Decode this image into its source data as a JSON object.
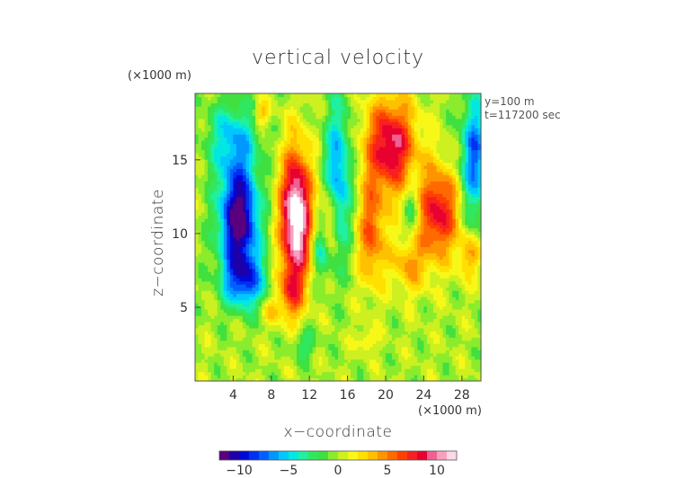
{
  "chart_data": {
    "type": "heatmap",
    "title": "vertical velocity",
    "xlabel": "x−coordinate",
    "ylabel": "z−coordinate",
    "x_scale_label": "(×1000 m)",
    "y_scale_label": "(×1000 m)",
    "info_lines": [
      "y=100 m",
      "t=117200 sec"
    ],
    "xlim": [
      0,
      30
    ],
    "ylim": [
      0,
      19.5
    ],
    "x_ticks": [
      4,
      8,
      12,
      16,
      20,
      24,
      28
    ],
    "x_tick_labels": [
      "4",
      "8",
      "12",
      "16",
      "20",
      "24",
      "28"
    ],
    "y_ticks": [
      5,
      10,
      15
    ],
    "y_tick_labels": [
      "5",
      "10",
      "15"
    ],
    "colorbar": {
      "range": [
        -12,
        12
      ],
      "ticks": [
        -10,
        -5,
        0,
        5,
        10
      ],
      "tick_labels": [
        "−10",
        "−5",
        "0",
        "5",
        "10"
      ],
      "levels": 24,
      "colors": [
        "#5a007f",
        "#1f00a8",
        "#0008d8",
        "#0030f0",
        "#0060ff",
        "#0098ff",
        "#00c8ff",
        "#00e8e0",
        "#20f0a0",
        "#30e860",
        "#40e040",
        "#8aec2c",
        "#ccf020",
        "#f8f818",
        "#ffe000",
        "#ffc000",
        "#ff9400",
        "#ff6a00",
        "#ff4000",
        "#f82020",
        "#e80030",
        "#f06090",
        "#f8a0c0",
        "#fcd8e8"
      ]
    },
    "features": [
      {
        "x": 4.6,
        "z": 11.0,
        "w": -11.5,
        "note": "strong downdraft core"
      },
      {
        "x": 10.6,
        "z": 11.2,
        "w": 12.0,
        "note": "strong updraft core"
      },
      {
        "x": 20.5,
        "z": 16.0,
        "w": 9.0,
        "note": "updraft"
      },
      {
        "x": 25.5,
        "z": 11.5,
        "w": 8.0,
        "note": "updraft"
      },
      {
        "x": 15.0,
        "z": 14.0,
        "w": -6.0,
        "note": "downdraft"
      },
      {
        "x": 29.0,
        "z": 15.0,
        "w": -7.0,
        "note": "downdraft"
      }
    ]
  }
}
